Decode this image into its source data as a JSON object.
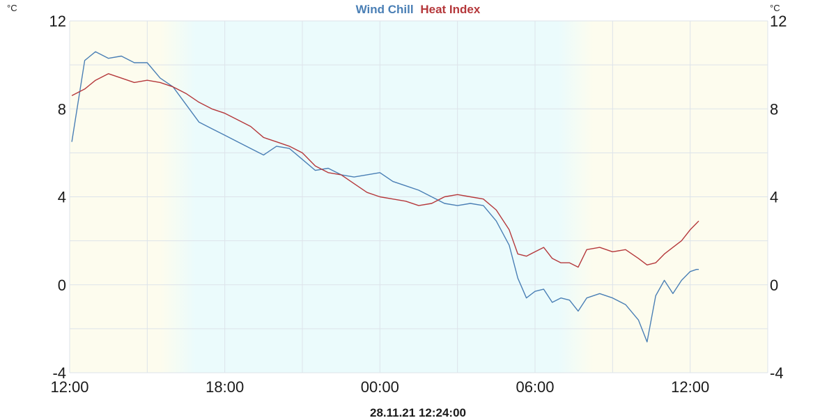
{
  "chart_data": {
    "type": "line",
    "title_parts": [
      "Wind Chill",
      "Heat Index"
    ],
    "timestamp": "28.11.21 12:24:00",
    "unit_left": "°C",
    "unit_right": "°C",
    "ylim": [
      -4,
      12
    ],
    "yticks": [
      "12",
      "8",
      "4",
      "0",
      "-4"
    ],
    "xlim": [
      "28.11.21 12:00",
      "29.11.21 15:00"
    ],
    "xticks": [
      "12:00",
      "18:00",
      "00:00",
      "06:00",
      "12:00"
    ],
    "grid": true,
    "colors": {
      "wind_chill": "#4a7fb5",
      "heat_index": "#b5383b",
      "day_band": "#fdfcee",
      "night_band": "#ebfbfc",
      "grid": "#dde3ea"
    },
    "series": [
      {
        "name": "Wind Chill",
        "color": "#4a7fb5",
        "times": [
          "28.11.21 12:05",
          "28.11.21 12:35",
          "28.11.21 13:00",
          "28.11.21 13:30",
          "28.11.21 14:00",
          "28.11.21 14:30",
          "28.11.21 15:00",
          "28.11.21 15:30",
          "28.11.21 16:00",
          "28.11.21 16:30",
          "28.11.21 17:00",
          "28.11.21 17:30",
          "28.11.21 18:00",
          "28.11.21 18:30",
          "28.11.21 19:00",
          "28.11.21 19:30",
          "28.11.21 20:00",
          "28.11.21 20:30",
          "28.11.21 21:00",
          "28.11.21 21:30",
          "28.11.21 22:00",
          "28.11.21 22:30",
          "28.11.21 23:00",
          "28.11.21 23:30",
          "29.11.21 00:00",
          "29.11.21 00:30",
          "29.11.21 01:00",
          "29.11.21 01:30",
          "29.11.21 02:00",
          "29.11.21 02:30",
          "29.11.21 03:00",
          "29.11.21 03:30",
          "29.11.21 04:00",
          "29.11.21 04:30",
          "29.11.21 05:00",
          "29.11.21 05:20",
          "29.11.21 05:40",
          "29.11.21 06:00",
          "29.11.21 06:20",
          "29.11.21 06:40",
          "29.11.21 07:00",
          "29.11.21 07:20",
          "29.11.21 07:40",
          "29.11.21 08:00",
          "29.11.21 08:30",
          "29.11.21 09:00",
          "29.11.21 09:30",
          "29.11.21 10:00",
          "29.11.21 10:20",
          "29.11.21 10:40",
          "29.11.21 11:00",
          "29.11.21 11:20",
          "29.11.21 11:40",
          "29.11.21 12:00",
          "29.11.21 12:15",
          "29.11.21 12:20"
        ],
        "values": [
          6.5,
          10.2,
          10.6,
          10.3,
          10.4,
          10.1,
          10.1,
          9.4,
          9.0,
          8.2,
          7.4,
          7.1,
          6.8,
          6.5,
          6.2,
          5.9,
          6.3,
          6.2,
          5.7,
          5.2,
          5.3,
          5.0,
          4.9,
          5.0,
          5.1,
          4.7,
          4.5,
          4.3,
          4.0,
          3.7,
          3.6,
          3.7,
          3.6,
          2.9,
          1.8,
          0.3,
          -0.6,
          -0.3,
          -0.2,
          -0.8,
          -0.6,
          -0.7,
          -1.2,
          -0.6,
          -0.4,
          -0.6,
          -0.9,
          -1.6,
          -2.6,
          -0.5,
          0.2,
          -0.4,
          0.2,
          0.6,
          0.7,
          0.7
        ]
      },
      {
        "name": "Heat Index",
        "color": "#b5383b",
        "times": [
          "28.11.21 12:05",
          "28.11.21 12:35",
          "28.11.21 13:00",
          "28.11.21 13:30",
          "28.11.21 14:00",
          "28.11.21 14:30",
          "28.11.21 15:00",
          "28.11.21 15:30",
          "28.11.21 16:00",
          "28.11.21 16:30",
          "28.11.21 17:00",
          "28.11.21 17:30",
          "28.11.21 18:00",
          "28.11.21 18:30",
          "28.11.21 19:00",
          "28.11.21 19:30",
          "28.11.21 20:00",
          "28.11.21 20:30",
          "28.11.21 21:00",
          "28.11.21 21:30",
          "28.11.21 22:00",
          "28.11.21 22:30",
          "28.11.21 23:00",
          "28.11.21 23:30",
          "29.11.21 00:00",
          "29.11.21 00:30",
          "29.11.21 01:00",
          "29.11.21 01:30",
          "29.11.21 02:00",
          "29.11.21 02:30",
          "29.11.21 03:00",
          "29.11.21 03:30",
          "29.11.21 04:00",
          "29.11.21 04:30",
          "29.11.21 05:00",
          "29.11.21 05:20",
          "29.11.21 05:40",
          "29.11.21 06:00",
          "29.11.21 06:20",
          "29.11.21 06:40",
          "29.11.21 07:00",
          "29.11.21 07:20",
          "29.11.21 07:40",
          "29.11.21 08:00",
          "29.11.21 08:30",
          "29.11.21 09:00",
          "29.11.21 09:30",
          "29.11.21 10:00",
          "29.11.21 10:20",
          "29.11.21 10:40",
          "29.11.21 11:00",
          "29.11.21 11:20",
          "29.11.21 11:40",
          "29.11.21 12:00",
          "29.11.21 12:15",
          "29.11.21 12:20"
        ],
        "values": [
          8.6,
          8.9,
          9.3,
          9.6,
          9.4,
          9.2,
          9.3,
          9.2,
          9.0,
          8.7,
          8.3,
          8.0,
          7.8,
          7.5,
          7.2,
          6.7,
          6.5,
          6.3,
          6.0,
          5.4,
          5.1,
          5.0,
          4.6,
          4.2,
          4.0,
          3.9,
          3.8,
          3.6,
          3.7,
          4.0,
          4.1,
          4.0,
          3.9,
          3.4,
          2.5,
          1.4,
          1.3,
          1.5,
          1.7,
          1.2,
          1.0,
          1.0,
          0.8,
          1.6,
          1.7,
          1.5,
          1.6,
          1.2,
          0.9,
          1.0,
          1.4,
          1.7,
          2.0,
          2.5,
          2.8,
          2.9
        ]
      }
    ]
  }
}
